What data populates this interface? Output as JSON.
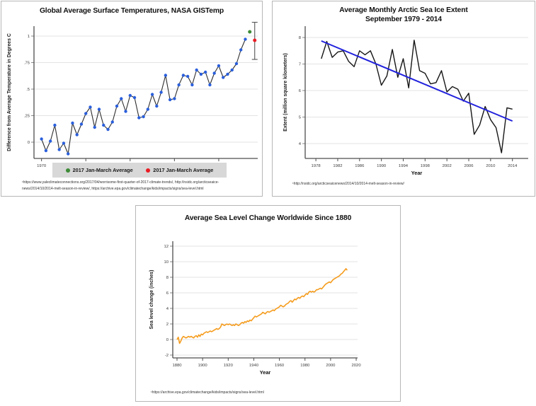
{
  "page": {
    "background": "#ffffff"
  },
  "chart_data": [
    {
      "id": "gistemp",
      "type": "line",
      "title": "Global Average Surface Temperatures, NASA GISTemp",
      "ylabel": "Difference from Average Temperature in Degrees C",
      "xlabel": "",
      "x_start": 1970,
      "x_step": 1,
      "values": [
        0.03,
        -0.08,
        0.01,
        0.16,
        -0.07,
        -0.01,
        -0.11,
        0.18,
        0.07,
        0.17,
        0.27,
        0.33,
        0.14,
        0.31,
        0.16,
        0.12,
        0.19,
        0.34,
        0.41,
        0.29,
        0.44,
        0.42,
        0.23,
        0.24,
        0.31,
        0.45,
        0.34,
        0.47,
        0.63,
        0.4,
        0.41,
        0.54,
        0.63,
        0.62,
        0.54,
        0.68,
        0.64,
        0.66,
        0.54,
        0.65,
        0.72,
        0.61,
        0.64,
        0.68,
        0.74,
        0.87,
        0.97
      ],
      "xticks": [
        1970,
        1980,
        1990,
        2000,
        2010
      ],
      "yticks": [
        "0",
        ".25",
        ".5",
        ".75",
        "1"
      ],
      "xlim": [
        1968.3,
        2018.8
      ],
      "ylim": [
        -0.15,
        1.09
      ],
      "grid": true,
      "line_color": "#2d2d2d",
      "marker_color": "#2a5fdc",
      "extra_points": [
        {
          "label": "2017 Jan-March Average",
          "x": 2017,
          "y": 1.04,
          "color": "#3d8b37"
        },
        {
          "label": "2017 Jan-March Average",
          "x": 2017,
          "y": 0.96,
          "color": "#ea1c24",
          "error_low": 0.78,
          "error_high": 1.13
        }
      ],
      "legend": [
        {
          "label": "2017 Jan-March Average",
          "color": "#3d8b37"
        },
        {
          "label": "2017 Jan-March Average",
          "color": "#ea1c24"
        }
      ],
      "citation": "¹https://www.yaleclimateconnections.org/2017/04/worrisome-first-quarter-of-2017-climate-trends/, http://nsidc.org/arcticseaice-news/2014/10/2014-melt-season-in-review/, https://archive.epa.gov/climatechange/kids/impacts/signs/sea-level.html"
    },
    {
      "id": "arctic",
      "type": "line",
      "title": "Average Monthly Arctic Sea Ice Extent",
      "subtitle": "September 1979 - 2014",
      "ylabel": "Extent (million square kilometers)",
      "xlabel": "Year",
      "x_start": 1979,
      "x_step": 1,
      "values": [
        7.2,
        7.85,
        7.25,
        7.45,
        7.5,
        7.1,
        6.9,
        7.5,
        7.35,
        7.5,
        7.0,
        6.2,
        6.55,
        7.55,
        6.5,
        7.2,
        6.1,
        7.9,
        6.75,
        6.65,
        6.25,
        6.3,
        6.75,
        5.95,
        6.15,
        6.05,
        5.6,
        5.9,
        4.35,
        4.7,
        5.4,
        4.9,
        4.6,
        3.65,
        5.35,
        5.3
      ],
      "xticks": [
        1978,
        1982,
        1986,
        1990,
        1994,
        1998,
        2002,
        2006,
        2010,
        2014
      ],
      "yticks": [
        4,
        5,
        6,
        7,
        8
      ],
      "xlim": [
        1976,
        2017
      ],
      "ylim": [
        3.4,
        8.4
      ],
      "grid": true,
      "line_color": "#161616",
      "trend": {
        "x1": 1979,
        "y1": 7.87,
        "x2": 2014,
        "y2": 4.85,
        "color": "#2222dd"
      },
      "citation": "¹http://nsidc.org/arcticseaicenews/2014/10/2014-melt-season-in-review/"
    },
    {
      "id": "sealevel",
      "type": "line",
      "title": "Average Sea Level Change Worldwide Since 1880",
      "ylabel": "Sea level change (inches)",
      "xlabel": "Year",
      "x_start": 1880,
      "x_step": 1,
      "values": [
        0.0,
        0.3,
        -0.5,
        -0.2,
        0.2,
        0.4,
        0.3,
        0.2,
        0.3,
        0.4,
        0.3,
        0.4,
        0.3,
        0.2,
        0.4,
        0.5,
        0.3,
        0.6,
        0.4,
        0.7,
        0.6,
        0.8,
        0.9,
        1.0,
        0.9,
        1.0,
        1.1,
        1.0,
        1.1,
        1.2,
        1.3,
        1.4,
        1.3,
        1.4,
        1.6,
        2.0,
        1.9,
        1.8,
        1.9,
        2.0,
        1.9,
        2.0,
        1.9,
        1.8,
        1.9,
        1.8,
        2.0,
        1.9,
        1.8,
        1.9,
        2.1,
        2.2,
        2.1,
        2.3,
        2.2,
        2.4,
        2.3,
        2.5,
        2.4,
        2.6,
        2.8,
        3.0,
        2.9,
        3.0,
        3.1,
        3.2,
        3.3,
        3.5,
        3.4,
        3.3,
        3.5,
        3.6,
        3.5,
        3.6,
        3.7,
        3.8,
        3.7,
        3.9,
        4.0,
        4.1,
        4.2,
        4.4,
        4.3,
        4.2,
        4.3,
        4.5,
        4.6,
        4.7,
        4.9,
        5.0,
        4.8,
        5.0,
        5.2,
        5.1,
        5.3,
        5.4,
        5.3,
        5.5,
        5.6,
        5.5,
        5.7,
        5.9,
        5.8,
        6.1,
        6.2,
        6.1,
        6.2,
        6.1,
        6.2,
        6.4,
        6.4,
        6.5,
        6.6,
        6.5,
        6.7,
        6.9,
        7.1,
        7.2,
        7.3,
        7.4,
        7.3,
        7.5,
        7.7,
        7.8,
        7.9,
        8.0,
        8.1,
        8.2,
        8.4,
        8.5,
        8.7,
        8.9,
        9.1,
        8.9
      ],
      "xticks": [
        1880,
        1900,
        1920,
        1940,
        1960,
        1980,
        2000,
        2020
      ],
      "yticks": [
        -2,
        0,
        2,
        4,
        6,
        8,
        10,
        12
      ],
      "xlim": [
        1876.7,
        2021.1
      ],
      "ylim": [
        -2.4,
        12.6
      ],
      "grid": true,
      "line_color": "#f59c1d",
      "citation": "¹https://archive.epa.gov/climatechange/kids/impacts/signs/sea-level.html"
    }
  ]
}
